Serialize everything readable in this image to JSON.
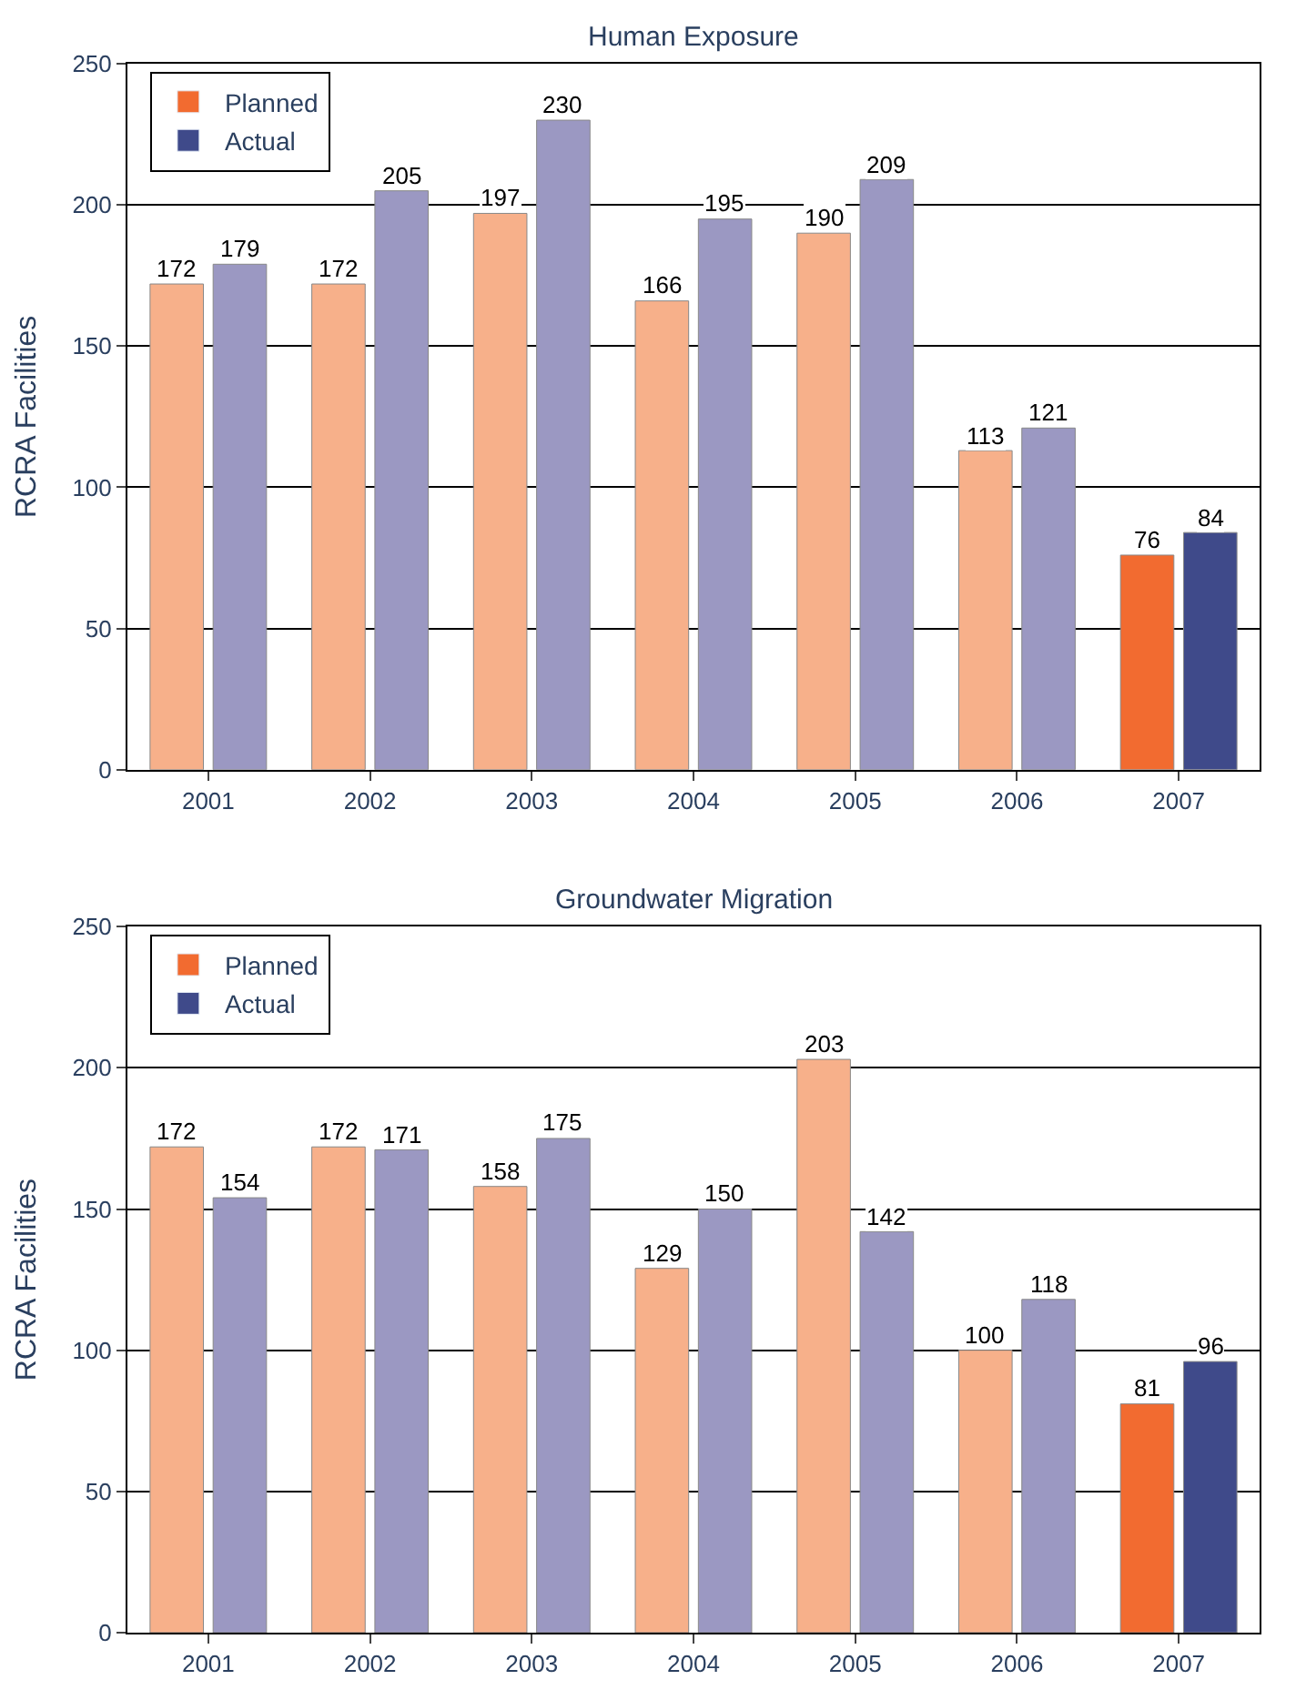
{
  "chart_data": [
    {
      "type": "bar",
      "title": "Human Exposure",
      "ylabel": "RCRA Facilities",
      "categories": [
        "2001",
        "2002",
        "2003",
        "2004",
        "2005",
        "2006",
        "2007"
      ],
      "series": [
        {
          "name": "Planned",
          "color": "#f26b30",
          "colors": [
            "#f7b08a",
            "#f7b08a",
            "#f7b08a",
            "#f7b08a",
            "#f7b08a",
            "#f7b08a",
            "#f26b30"
          ],
          "values": [
            172,
            172,
            197,
            166,
            190,
            113,
            76
          ]
        },
        {
          "name": "Actual",
          "color": "#3f4a8a",
          "colors": [
            "#9b98c2",
            "#9b98c2",
            "#9b98c2",
            "#9b98c2",
            "#9b98c2",
            "#9b98c2",
            "#3f4a8a"
          ],
          "values": [
            179,
            205,
            230,
            195,
            209,
            121,
            84
          ]
        }
      ],
      "ylim": [
        0,
        250
      ],
      "yticks": [
        0,
        50,
        100,
        150,
        200,
        250
      ],
      "grid": "y",
      "legend": "top left",
      "data_labels": true
    },
    {
      "type": "bar",
      "title": "Groundwater Migration",
      "ylabel": "RCRA Facilities",
      "categories": [
        "2001",
        "2002",
        "2003",
        "2004",
        "2005",
        "2006",
        "2007"
      ],
      "series": [
        {
          "name": "Planned",
          "color": "#f26b30",
          "colors": [
            "#f7b08a",
            "#f7b08a",
            "#f7b08a",
            "#f7b08a",
            "#f7b08a",
            "#f7b08a",
            "#f26b30"
          ],
          "values": [
            172,
            172,
            158,
            129,
            203,
            100,
            81
          ]
        },
        {
          "name": "Actual",
          "color": "#3f4a8a",
          "colors": [
            "#9b98c2",
            "#9b98c2",
            "#9b98c2",
            "#9b98c2",
            "#9b98c2",
            "#9b98c2",
            "#3f4a8a"
          ],
          "values": [
            154,
            171,
            175,
            150,
            142,
            118,
            96
          ]
        }
      ],
      "ylim": [
        0,
        250
      ],
      "yticks": [
        0,
        50,
        100,
        150,
        200,
        250
      ],
      "grid": "y",
      "legend": "top left",
      "data_labels": true
    }
  ]
}
